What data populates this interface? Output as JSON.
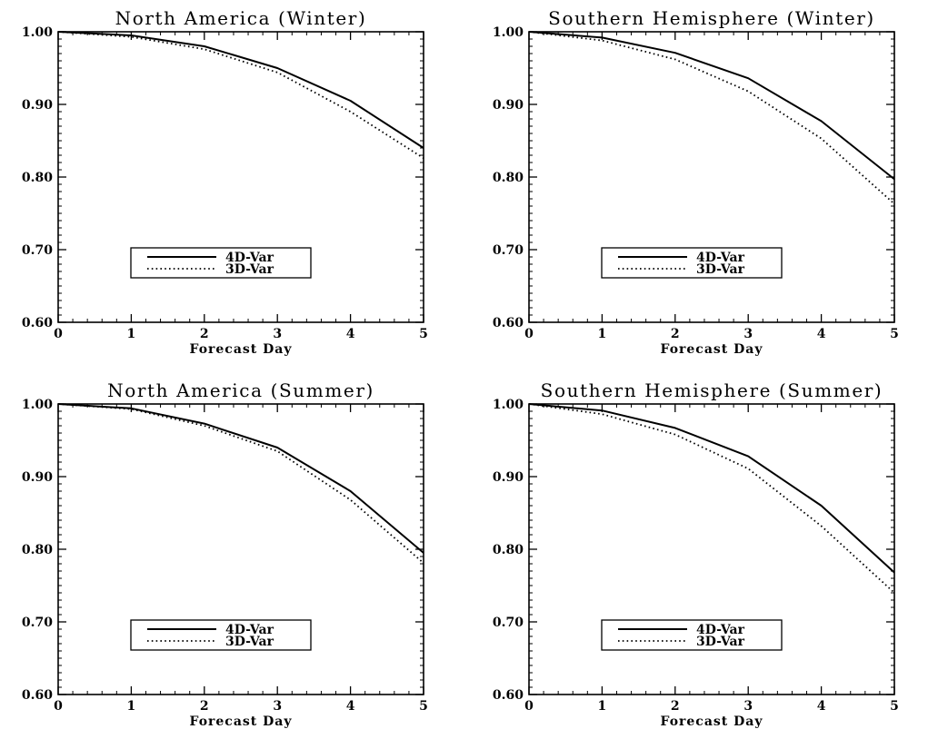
{
  "chart_data": [
    {
      "type": "line",
      "title": "North America (Winter)",
      "xlabel": "Forecast Day",
      "ylabel": "",
      "x": [
        0,
        1,
        2,
        3,
        4,
        5
      ],
      "xlim": [
        0,
        5
      ],
      "ylim": [
        0.6,
        1.0
      ],
      "xticks": [
        "0",
        "1",
        "2",
        "3",
        "4",
        "5"
      ],
      "yticks": [
        "0.60",
        "0.70",
        "0.80",
        "0.90",
        "1.00"
      ],
      "grid": false,
      "legend_position": "lower-center",
      "series": [
        {
          "name": "4D-Var",
          "style": "solid",
          "values": [
            1.0,
            0.995,
            0.98,
            0.95,
            0.905,
            0.84
          ]
        },
        {
          "name": "3D-Var",
          "style": "dotted",
          "values": [
            1.0,
            0.993,
            0.976,
            0.944,
            0.89,
            0.826
          ]
        }
      ]
    },
    {
      "type": "line",
      "title": "Southern Hemisphere (Winter)",
      "xlabel": "Forecast Day",
      "ylabel": "",
      "x": [
        0,
        1,
        2,
        3,
        4,
        5
      ],
      "xlim": [
        0,
        5
      ],
      "ylim": [
        0.6,
        1.0
      ],
      "xticks": [
        "0",
        "1",
        "2",
        "3",
        "4",
        "5"
      ],
      "yticks": [
        "0.60",
        "0.70",
        "0.80",
        "0.90",
        "1.00"
      ],
      "grid": false,
      "legend_position": "lower-center",
      "series": [
        {
          "name": "4D-Var",
          "style": "solid",
          "values": [
            1.0,
            0.992,
            0.971,
            0.936,
            0.877,
            0.797
          ]
        },
        {
          "name": "3D-Var",
          "style": "dotted",
          "values": [
            1.0,
            0.988,
            0.962,
            0.918,
            0.853,
            0.763
          ]
        }
      ]
    },
    {
      "type": "line",
      "title": "North America (Summer)",
      "xlabel": "Forecast Day",
      "ylabel": "",
      "x": [
        0,
        1,
        2,
        3,
        4,
        5
      ],
      "xlim": [
        0,
        5
      ],
      "ylim": [
        0.6,
        1.0
      ],
      "xticks": [
        "0",
        "1",
        "2",
        "3",
        "4",
        "5"
      ],
      "yticks": [
        "0.60",
        "0.70",
        "0.80",
        "0.90",
        "1.00"
      ],
      "grid": false,
      "legend_position": "lower-center",
      "series": [
        {
          "name": "4D-Var",
          "style": "solid",
          "values": [
            1.0,
            0.994,
            0.973,
            0.94,
            0.88,
            0.795
          ]
        },
        {
          "name": "3D-Var",
          "style": "dotted",
          "values": [
            1.0,
            0.993,
            0.97,
            0.935,
            0.868,
            0.781
          ]
        }
      ]
    },
    {
      "type": "line",
      "title": "Southern Hemisphere (Summer)",
      "xlabel": "Forecast Day",
      "ylabel": "",
      "x": [
        0,
        1,
        2,
        3,
        4,
        5
      ],
      "xlim": [
        0,
        5
      ],
      "ylim": [
        0.6,
        1.0
      ],
      "xticks": [
        "0",
        "1",
        "2",
        "3",
        "4",
        "5"
      ],
      "yticks": [
        "0.60",
        "0.70",
        "0.80",
        "0.90",
        "1.00"
      ],
      "grid": false,
      "legend_position": "lower-center",
      "series": [
        {
          "name": "4D-Var",
          "style": "solid",
          "values": [
            1.0,
            0.991,
            0.967,
            0.928,
            0.86,
            0.768
          ]
        },
        {
          "name": "3D-Var",
          "style": "dotted",
          "values": [
            1.0,
            0.986,
            0.958,
            0.911,
            0.832,
            0.74
          ]
        }
      ]
    }
  ]
}
